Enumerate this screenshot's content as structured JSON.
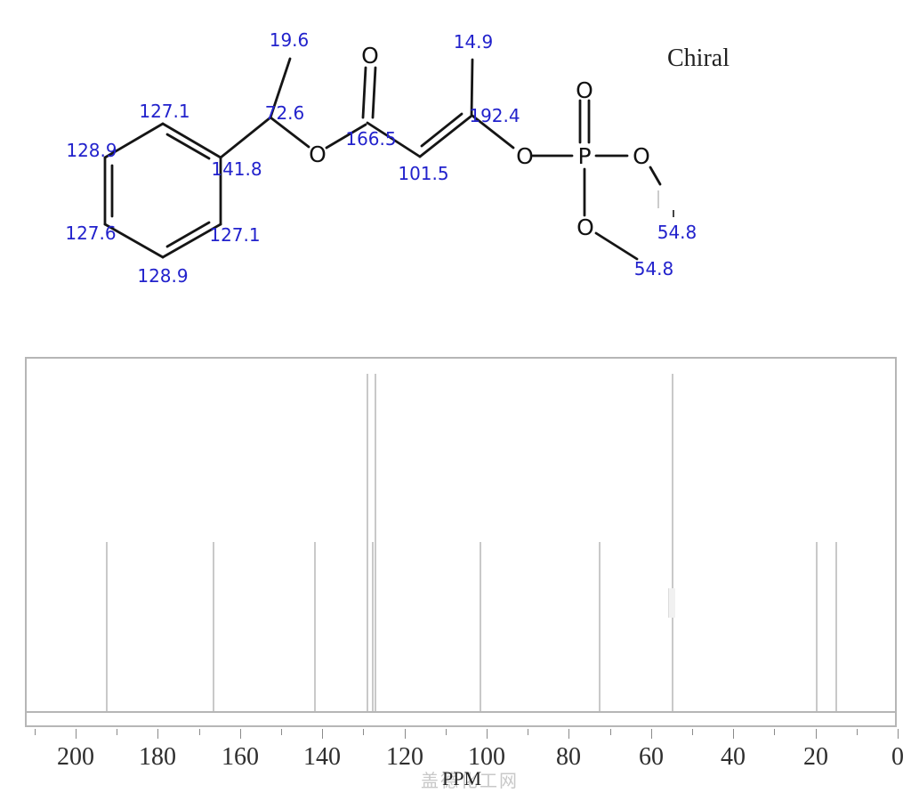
{
  "molecule": {
    "chiral_label": "Chiral",
    "atom_symbols": [
      "O",
      "O",
      "O",
      "O",
      "P",
      "O",
      "O"
    ],
    "shift_labels": [
      "19.6",
      "127.1",
      "128.9",
      "127.6",
      "128.9",
      "127.1",
      "141.8",
      "72.6",
      "166.5",
      "101.5",
      "14.9",
      "192.4",
      "54.8",
      "54.8"
    ]
  },
  "chart_data": {
    "type": "bar",
    "subtype": "13C NMR stick spectrum",
    "title": "",
    "xlabel": "PPM",
    "ylabel": "",
    "grid": false,
    "x_axis": {
      "direction": "reversed",
      "range_ppm": [
        212,
        0
      ],
      "major_label_step": 20,
      "minor_tick_step": 10,
      "labels": [
        "200",
        "180",
        "160",
        "140",
        "120",
        "100",
        "80",
        "60",
        "40",
        "20",
        "0"
      ]
    },
    "ylim": [
      0,
      1
    ],
    "peaks": [
      {
        "ppm": 192.4,
        "relative_height": 0.5
      },
      {
        "ppm": 166.5,
        "relative_height": 0.5
      },
      {
        "ppm": 141.8,
        "relative_height": 0.5
      },
      {
        "ppm": 128.9,
        "relative_height": 1.0
      },
      {
        "ppm": 127.6,
        "relative_height": 0.5
      },
      {
        "ppm": 127.1,
        "relative_height": 1.0
      },
      {
        "ppm": 101.5,
        "relative_height": 0.5
      },
      {
        "ppm": 72.6,
        "relative_height": 0.5
      },
      {
        "ppm": 54.8,
        "relative_height": 1.0
      },
      {
        "ppm": 19.6,
        "relative_height": 0.5
      },
      {
        "ppm": 14.9,
        "relative_height": 0.5
      }
    ]
  },
  "watermark": "盖德化工网"
}
